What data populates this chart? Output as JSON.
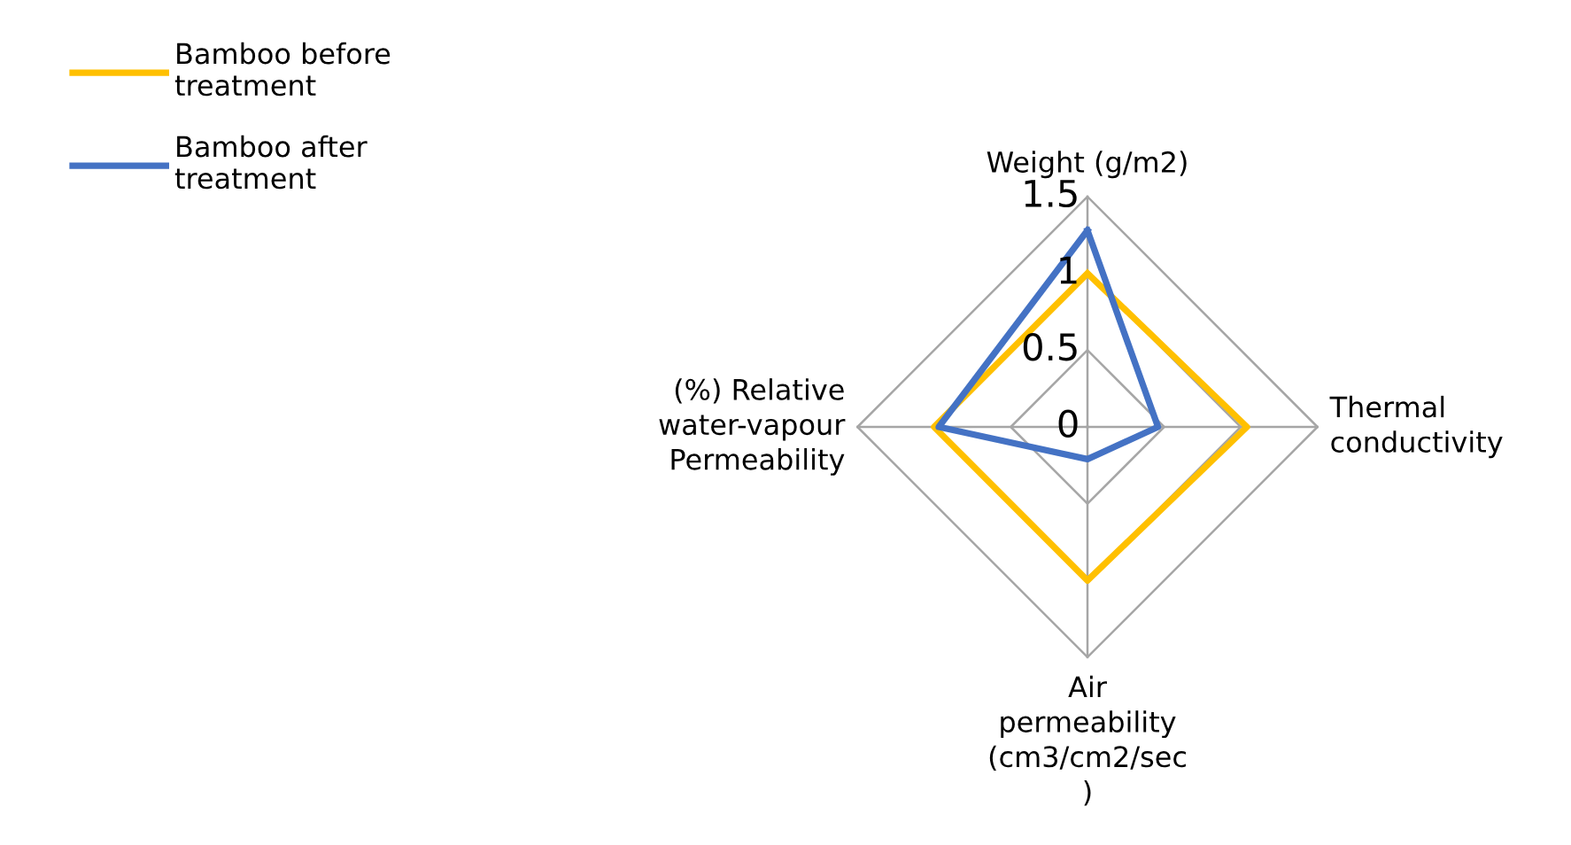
{
  "chart_data": {
    "type": "radar",
    "categories": [
      "Weight (g/m2)",
      "Thermal\nconductivity",
      "Air\npermeability\n(cm3/cm2/sec\n)",
      "(%) Relative\nwater-vapour\nPermeability"
    ],
    "series": [
      {
        "name": "Bamboo before\ntreatment",
        "color": "#ffc000",
        "values": [
          1.0,
          1.04,
          1.0,
          1.0
        ]
      },
      {
        "name": "Bamboo after\ntreatment",
        "color": "#4472c4",
        "values": [
          1.28,
          0.46,
          0.21,
          0.97
        ]
      }
    ],
    "ylim": [
      0,
      1.5
    ],
    "yticks": [
      0,
      0.5,
      1,
      1.5
    ],
    "grid": true,
    "legend": "top left",
    "marker": "none",
    "line_style": "solid"
  }
}
